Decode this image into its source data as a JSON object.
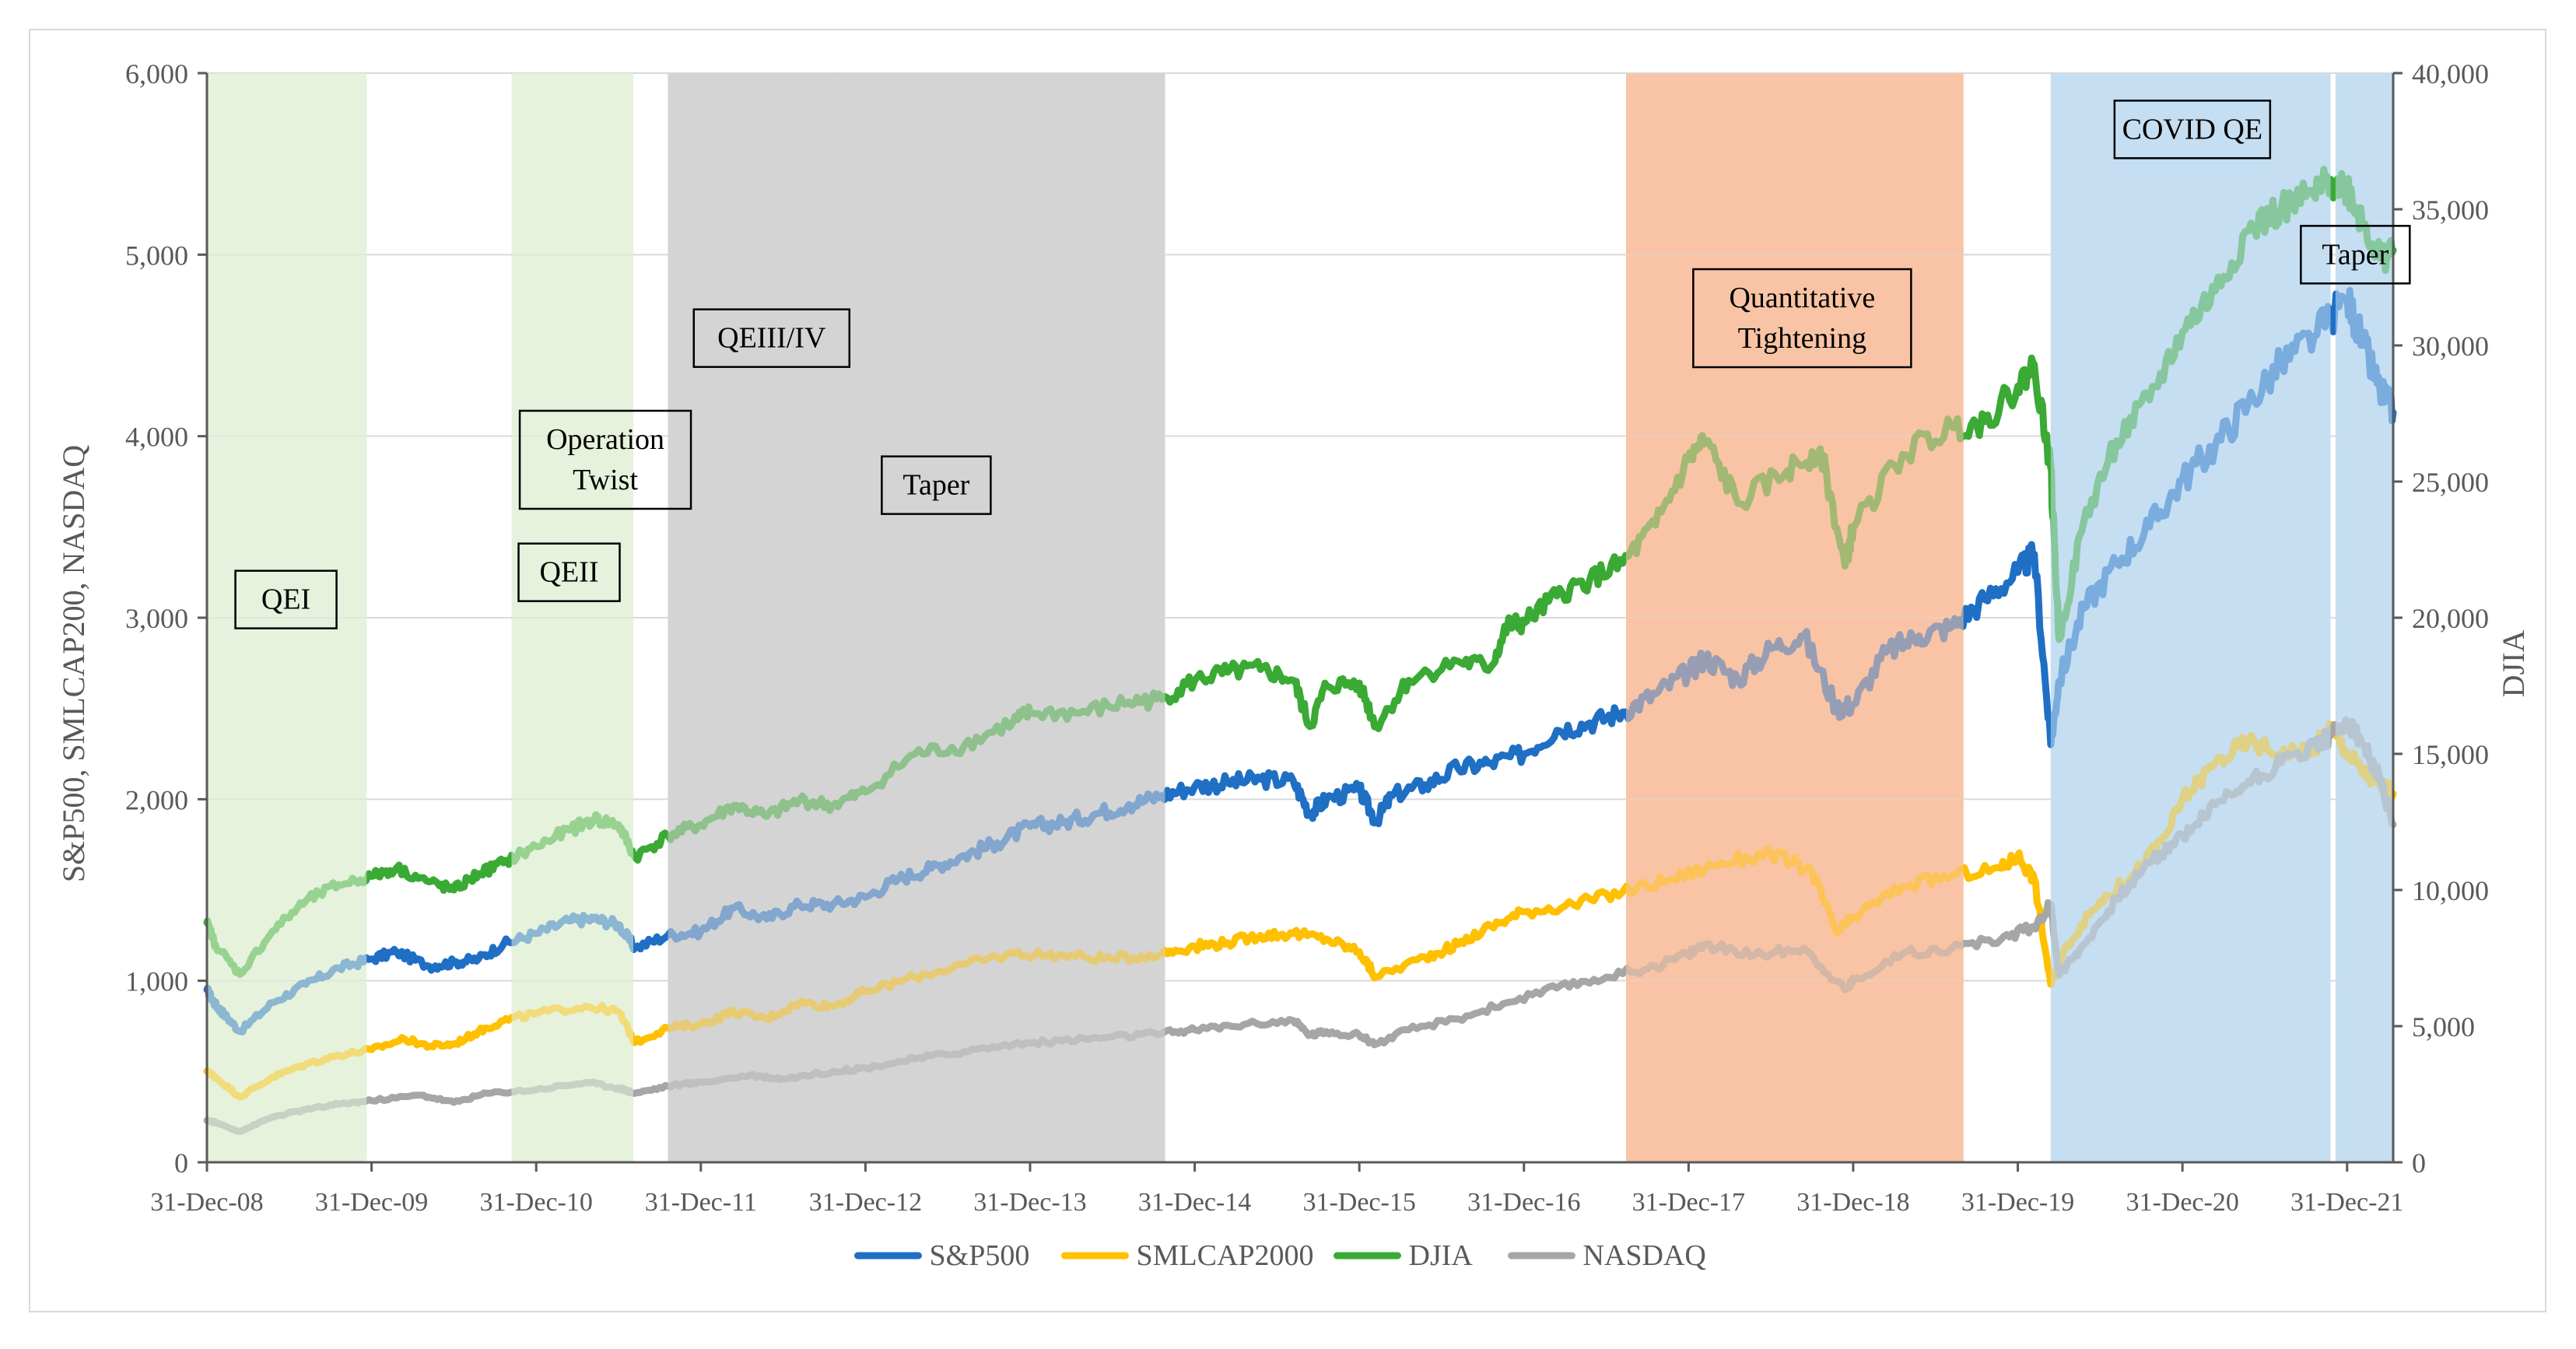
{
  "chart_data": {
    "type": "line",
    "title": "",
    "ylabel": "S&P500, SMLCAP200,  NASDAQ",
    "y2label": "DJIA",
    "xlabel": "",
    "ylim": [
      0,
      6000
    ],
    "y2lim": [
      0,
      40000
    ],
    "xlim": [
      2009.0,
      2022.28
    ],
    "y_ticks": [
      0,
      1000,
      2000,
      3000,
      4000,
      5000,
      6000
    ],
    "y_tick_labels": [
      "0",
      "1,000",
      "2,000",
      "3,000",
      "4,000",
      "5,000",
      "6,000"
    ],
    "y2_ticks": [
      0,
      5000,
      10000,
      15000,
      20000,
      25000,
      30000,
      35000,
      40000
    ],
    "y2_tick_labels": [
      "0",
      "5,000",
      "10,000",
      "15,000",
      "20,000",
      "25,000",
      "30,000",
      "35,000",
      "40,000"
    ],
    "x_ticks": [
      2009,
      2010,
      2011,
      2012,
      2013,
      2014,
      2015,
      2016,
      2017,
      2018,
      2019,
      2020,
      2021,
      2022
    ],
    "x_tick_labels": [
      "31-Dec-08",
      "31-Dec-09",
      "31-Dec-10",
      "31-Dec-11",
      "31-Dec-12",
      "31-Dec-13",
      "31-Dec-14",
      "31-Dec-15",
      "31-Dec-16",
      "31-Dec-17",
      "31-Dec-18",
      "31-Dec-19",
      "31-Dec-20",
      "31-Dec-21"
    ],
    "grid": true,
    "legend_position": "bottom",
    "series": [
      {
        "name": "S&P500",
        "axis": "left",
        "color": "#1f6fc5",
        "x": [
          2009.0,
          2009.05,
          2009.1,
          2009.2,
          2009.4,
          2009.6,
          2009.8,
          2010.0,
          2010.15,
          2010.35,
          2010.5,
          2010.65,
          2010.8,
          2011.0,
          2011.2,
          2011.35,
          2011.5,
          2011.6,
          2011.8,
          2012.0,
          2012.2,
          2012.4,
          2012.6,
          2012.8,
          2013.0,
          2013.2,
          2013.4,
          2013.6,
          2013.8,
          2014.0,
          2014.2,
          2014.4,
          2014.6,
          2014.8,
          2015.0,
          2015.2,
          2015.4,
          2015.6,
          2015.7,
          2015.8,
          2016.0,
          2016.1,
          2016.2,
          2016.4,
          2016.6,
          2016.8,
          2017.0,
          2017.2,
          2017.4,
          2017.6,
          2017.8,
          2018.0,
          2018.1,
          2018.3,
          2018.5,
          2018.7,
          2018.9,
          2019.0,
          2019.2,
          2019.4,
          2019.6,
          2019.8,
          2020.0,
          2020.1,
          2020.2,
          2020.25,
          2020.4,
          2020.6,
          2020.8,
          2021.0,
          2021.2,
          2021.4,
          2021.6,
          2021.8,
          2022.0,
          2022.1,
          2022.2,
          2022.28
        ],
        "values": [
          950,
          870,
          820,
          720,
          880,
          980,
          1070,
          1120,
          1160,
          1080,
          1100,
          1120,
          1200,
          1260,
          1330,
          1340,
          1310,
          1180,
          1250,
          1270,
          1400,
          1340,
          1420,
          1420,
          1460,
          1560,
          1620,
          1690,
          1760,
          1850,
          1870,
          1920,
          1970,
          2020,
          2070,
          2090,
          2110,
          2100,
          1920,
          2000,
          2050,
          1880,
          2020,
          2080,
          2170,
          2200,
          2250,
          2380,
          2420,
          2480,
          2580,
          2700,
          2780,
          2660,
          2830,
          2900,
          2500,
          2520,
          2810,
          2900,
          2950,
          3100,
          3250,
          3350,
          2300,
          2650,
          3050,
          3300,
          3500,
          3760,
          3950,
          4180,
          4400,
          4550,
          4760,
          4500,
          4250,
          4130
        ]
      },
      {
        "name": "SMLCAP2000",
        "axis": "left",
        "color": "#ffc000",
        "x": [
          2009.0,
          2009.05,
          2009.2,
          2009.4,
          2009.6,
          2009.8,
          2010.0,
          2010.2,
          2010.35,
          2010.5,
          2010.65,
          2010.8,
          2011.0,
          2011.3,
          2011.5,
          2011.6,
          2011.8,
          2012.0,
          2012.2,
          2012.4,
          2012.6,
          2012.8,
          2013.0,
          2013.3,
          2013.6,
          2013.9,
          2014.2,
          2014.5,
          2014.8,
          2015.0,
          2015.2,
          2015.4,
          2015.6,
          2015.8,
          2016.0,
          2016.1,
          2016.4,
          2016.6,
          2016.8,
          2017.0,
          2017.3,
          2017.6,
          2017.9,
          2018.2,
          2018.5,
          2018.75,
          2018.9,
          2019.0,
          2019.3,
          2019.6,
          2019.9,
          2020.0,
          2020.1,
          2020.2,
          2020.3,
          2020.5,
          2020.7,
          2020.9,
          2021.0,
          2021.2,
          2021.4,
          2021.6,
          2021.8,
          2021.9,
          2022.0,
          2022.1,
          2022.2,
          2022.28
        ],
        "values": [
          500,
          470,
          360,
          470,
          540,
          590,
          620,
          680,
          640,
          650,
          720,
          780,
          820,
          860,
          830,
          660,
          740,
          760,
          830,
          790,
          880,
          860,
          940,
          1020,
          1090,
          1150,
          1140,
          1120,
          1150,
          1190,
          1210,
          1250,
          1260,
          1230,
          1160,
          1020,
          1130,
          1200,
          1300,
          1380,
          1420,
          1490,
          1560,
          1650,
          1700,
          1600,
          1260,
          1350,
          1520,
          1580,
          1620,
          1690,
          1560,
          980,
          1200,
          1440,
          1580,
          1800,
          2000,
          2200,
          2320,
          2250,
          2280,
          2400,
          2260,
          2150,
          2080,
          2030
        ]
      },
      {
        "name": "DJIA",
        "axis": "right",
        "color": "#3aaa35",
        "x": [
          2009.0,
          2009.05,
          2009.2,
          2009.4,
          2009.6,
          2009.8,
          2010.0,
          2010.15,
          2010.35,
          2010.5,
          2010.65,
          2010.8,
          2011.0,
          2011.2,
          2011.35,
          2011.5,
          2011.6,
          2011.8,
          2012.0,
          2012.2,
          2012.4,
          2012.6,
          2012.8,
          2013.0,
          2013.3,
          2013.6,
          2013.9,
          2014.0,
          2014.3,
          2014.6,
          2014.8,
          2015.0,
          2015.2,
          2015.4,
          2015.6,
          2015.7,
          2015.8,
          2016.0,
          2016.1,
          2016.3,
          2016.6,
          2016.8,
          2016.9,
          2017.0,
          2017.2,
          2017.4,
          2017.6,
          2017.8,
          2018.0,
          2018.1,
          2018.3,
          2018.6,
          2018.8,
          2018.95,
          2019.0,
          2019.3,
          2019.6,
          2019.8,
          2020.0,
          2020.1,
          2020.2,
          2020.25,
          2020.4,
          2020.6,
          2020.8,
          2021.0,
          2021.2,
          2021.4,
          2021.6,
          2021.8,
          2021.9,
          2022.0,
          2022.1,
          2022.2,
          2022.28
        ],
        "values": [
          8800,
          8000,
          6900,
          8500,
          9600,
          10200,
          10500,
          10800,
          10300,
          10000,
          10600,
          11000,
          11600,
          12200,
          12600,
          12400,
          11200,
          12000,
          12400,
          13100,
          12700,
          13300,
          13100,
          13600,
          15000,
          15300,
          16200,
          16500,
          16500,
          16900,
          17000,
          17700,
          18000,
          18100,
          17700,
          16000,
          17500,
          17600,
          16000,
          17700,
          18400,
          18200,
          19700,
          19800,
          20800,
          21400,
          22000,
          23400,
          25800,
          26500,
          24200,
          25400,
          26200,
          21900,
          23300,
          26000,
          27000,
          27200,
          28500,
          29300,
          25500,
          19200,
          23500,
          26500,
          28000,
          30500,
          32000,
          34200,
          35000,
          35500,
          36100,
          35800,
          34500,
          33200,
          33500
        ]
      },
      {
        "name": "NASDAQ",
        "axis": "left",
        "color": "#a6a6a6",
        "x": [
          2009.0,
          2009.05,
          2009.2,
          2009.4,
          2009.6,
          2009.8,
          2010.0,
          2010.3,
          2010.5,
          2010.7,
          2011.0,
          2011.3,
          2011.5,
          2011.6,
          2011.8,
          2012.0,
          2012.3,
          2012.5,
          2012.8,
          2013.0,
          2013.3,
          2013.6,
          2013.9,
          2014.2,
          2014.5,
          2014.8,
          2015.0,
          2015.3,
          2015.6,
          2015.7,
          2015.8,
          2016.0,
          2016.1,
          2016.3,
          2016.6,
          2016.9,
          2017.2,
          2017.5,
          2017.8,
          2018.0,
          2018.1,
          2018.4,
          2018.7,
          2018.95,
          2019.0,
          2019.3,
          2019.6,
          2019.9,
          2020.1,
          2020.2,
          2020.25,
          2020.4,
          2020.6,
          2020.8,
          2021.0,
          2021.2,
          2021.4,
          2021.6,
          2021.8,
          2021.9,
          2022.0,
          2022.1,
          2022.2,
          2022.28
        ],
        "values": [
          230,
          220,
          170,
          250,
          290,
          320,
          340,
          370,
          330,
          380,
          400,
          440,
          410,
          380,
          420,
          440,
          480,
          460,
          500,
          520,
          570,
          610,
          650,
          670,
          690,
          710,
          730,
          760,
          780,
          700,
          720,
          700,
          650,
          730,
          790,
          880,
          960,
          1020,
          1080,
          1150,
          1200,
          1140,
          1180,
          950,
          1000,
          1150,
          1180,
          1230,
          1300,
          1420,
          1030,
          1200,
          1450,
          1650,
          1800,
          1970,
          2100,
          2200,
          2300,
          2350,
          2430,
          2300,
          2100,
          1860
        ]
      }
    ],
    "shaded_regions": [
      {
        "label": "QEI",
        "start": 2009.0,
        "end": 2009.97,
        "color": "#e6f2dc"
      },
      {
        "label": "QEII",
        "start": 2010.85,
        "end": 2011.59,
        "color": "#e6f2dc"
      },
      {
        "label": "Operation Twist",
        "start": 2011.8,
        "end": 2012.83,
        "color": "#d4d4d4"
      },
      {
        "label": "QEIII/IV",
        "start": 2012.83,
        "end": 2014.82,
        "color": "#d4d4d4"
      },
      {
        "label": "Quantitative Tightening",
        "start": 2017.62,
        "end": 2019.67,
        "color": "#f9c4a5"
      },
      {
        "label": "COVID QE",
        "start": 2020.2,
        "end": 2021.9,
        "color": "#c5def2"
      },
      {
        "label": "Taper",
        "start": 2021.93,
        "end": 2022.28,
        "color": "#c5def2"
      }
    ],
    "annotations": [
      {
        "text": [
          "QEI"
        ],
        "anchor_x": 2009.48,
        "anchor_y": 3100
      },
      {
        "text": [
          "QEII"
        ],
        "anchor_x": 2011.2,
        "anchor_y": 3250
      },
      {
        "text": [
          "Operation",
          "Twist"
        ],
        "anchor_x": 2011.42,
        "anchor_y": 3870
      },
      {
        "text": [
          "QEIII/IV"
        ],
        "anchor_x": 2012.43,
        "anchor_y": 4540
      },
      {
        "text": [
          "Taper"
        ],
        "anchor_x": 2013.43,
        "anchor_y": 3730
      },
      {
        "text": [
          "Quantitative",
          "Tightening"
        ],
        "anchor_x": 2018.69,
        "anchor_y": 4650
      },
      {
        "text": [
          "COVID QE"
        ],
        "anchor_x": 2021.06,
        "anchor_y": 5690
      },
      {
        "text": [
          "Taper"
        ],
        "anchor_x": 2022.05,
        "anchor_y": 5000
      }
    ]
  }
}
